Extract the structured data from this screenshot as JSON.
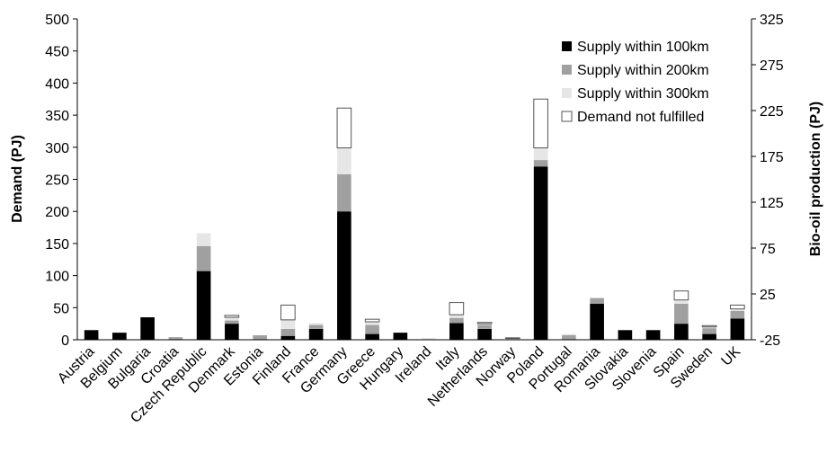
{
  "chart_data": {
    "type": "bar",
    "stacked": true,
    "title": "",
    "xlabel": "",
    "ylabel": "Demand (PJ)",
    "y2label": "Bio-oil production (PJ)",
    "ylim": [
      0,
      500
    ],
    "y2lim": [
      -25,
      325
    ],
    "yticks": [
      "0",
      "50",
      "100",
      "150",
      "200",
      "250",
      "300",
      "350",
      "400",
      "450",
      "500"
    ],
    "y2ticks": [
      "-25",
      "25",
      "75",
      "125",
      "175",
      "225",
      "275",
      "325"
    ],
    "grid": false,
    "legend_position": "top-right",
    "categories": [
      "Austria",
      "Belgium",
      "Bulgaria",
      "Croatia",
      "Czech Republic",
      "Denmark",
      "Estonia",
      "Finland",
      "France",
      "Germany",
      "Greece",
      "Hungary",
      "Ireland",
      "Italy",
      "Netherlands",
      "Norway",
      "Poland",
      "Portugal",
      "Romania",
      "Slovakia",
      "Slovenia",
      "Spain",
      "Sweden",
      "UK"
    ],
    "series": [
      {
        "name": "Supply within 100km",
        "color": "#000000",
        "values": [
          15,
          11,
          35,
          0,
          107,
          25,
          0,
          6,
          17,
          200,
          9,
          11,
          0,
          26,
          17,
          0,
          270,
          0,
          56,
          15,
          15,
          25,
          9,
          33
        ]
      },
      {
        "name": "Supply within 200km",
        "color": "#a0a0a0",
        "values": [
          0,
          0,
          0,
          4,
          39,
          5,
          7,
          11,
          6,
          58,
          14,
          0,
          0,
          8,
          6,
          0,
          10,
          7,
          9,
          0,
          0,
          31,
          9,
          12
        ]
      },
      {
        "name": "Supply within 300km",
        "color": "#e6e6e6",
        "values": [
          0,
          0,
          0,
          0,
          20,
          5,
          0,
          14,
          3,
          41,
          5,
          0,
          3,
          5,
          2,
          2,
          19,
          2,
          0,
          0,
          0,
          6,
          2,
          3
        ]
      },
      {
        "name": "Demand not fulfilled",
        "color": "#ffffff",
        "values": [
          0,
          0,
          0,
          0,
          0,
          3,
          0,
          23,
          0,
          62,
          4,
          0,
          0,
          19,
          2,
          1,
          76,
          0,
          0,
          0,
          0,
          14,
          2,
          6
        ]
      }
    ]
  }
}
